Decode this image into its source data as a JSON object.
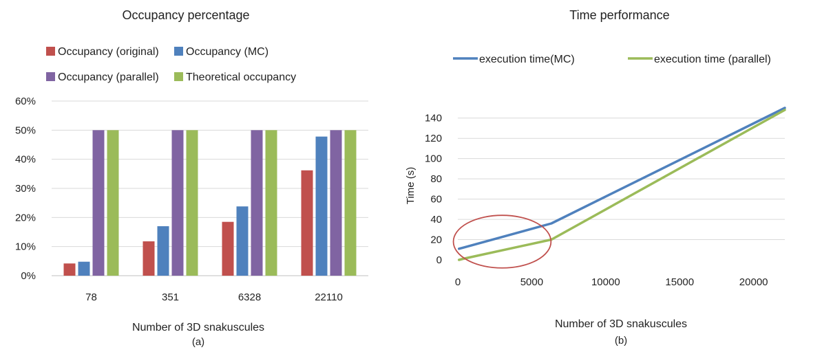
{
  "chart_data": [
    {
      "type": "bar",
      "title": "Occupancy percentage",
      "xlabel": "Number of 3D snakuscules",
      "caption": "(a)",
      "ylabel": "",
      "ylim": [
        0,
        60
      ],
      "yticks": [
        0,
        10,
        20,
        30,
        40,
        50,
        60
      ],
      "ytick_labels": [
        "0%",
        "10%",
        "20%",
        "30%",
        "40%",
        "50%",
        "60%"
      ],
      "categories": [
        "78",
        "351",
        "6328",
        "22110"
      ],
      "grid": true,
      "legend_position": "top",
      "series": [
        {
          "name": "Occupancy (original)",
          "color": "#C0504D",
          "values": [
            4.2,
            11.8,
            18.5,
            36.2
          ]
        },
        {
          "name": "Occupancy (MC)",
          "color": "#4F81BD",
          "values": [
            4.8,
            17.0,
            23.8,
            47.8
          ]
        },
        {
          "name": "Occupancy (parallel)",
          "color": "#8064A2",
          "values": [
            50,
            50,
            50,
            50
          ]
        },
        {
          "name": "Theoretical occupancy",
          "color": "#9BBB59",
          "values": [
            50,
            50,
            50,
            50
          ]
        }
      ]
    },
    {
      "type": "line",
      "title": "Time performance",
      "xlabel": "Number of 3D snakuscules",
      "caption": "(b)",
      "ylabel": "Time (s)",
      "xlim": [
        0,
        22110
      ],
      "xticks": [
        0,
        5000,
        10000,
        15000,
        20000
      ],
      "ylim": [
        0,
        150
      ],
      "yticks": [
        0,
        20,
        40,
        60,
        80,
        100,
        120,
        140
      ],
      "grid": true,
      "legend_position": "top",
      "series": [
        {
          "name": "execution time(MC)",
          "color": "#4F81BD",
          "x": [
            78,
            351,
            6328,
            22110
          ],
          "y": [
            11,
            12,
            36,
            150
          ]
        },
        {
          "name": "execution time (parallel)",
          "color": "#9BBB59",
          "x": [
            78,
            351,
            6328,
            22110
          ],
          "y": [
            0,
            1,
            20,
            148
          ]
        }
      ],
      "annotation": {
        "shape": "ellipse",
        "color": "#C0504D",
        "cx": 3000,
        "cy": 18,
        "rx": 3300,
        "ry": 26
      }
    }
  ]
}
